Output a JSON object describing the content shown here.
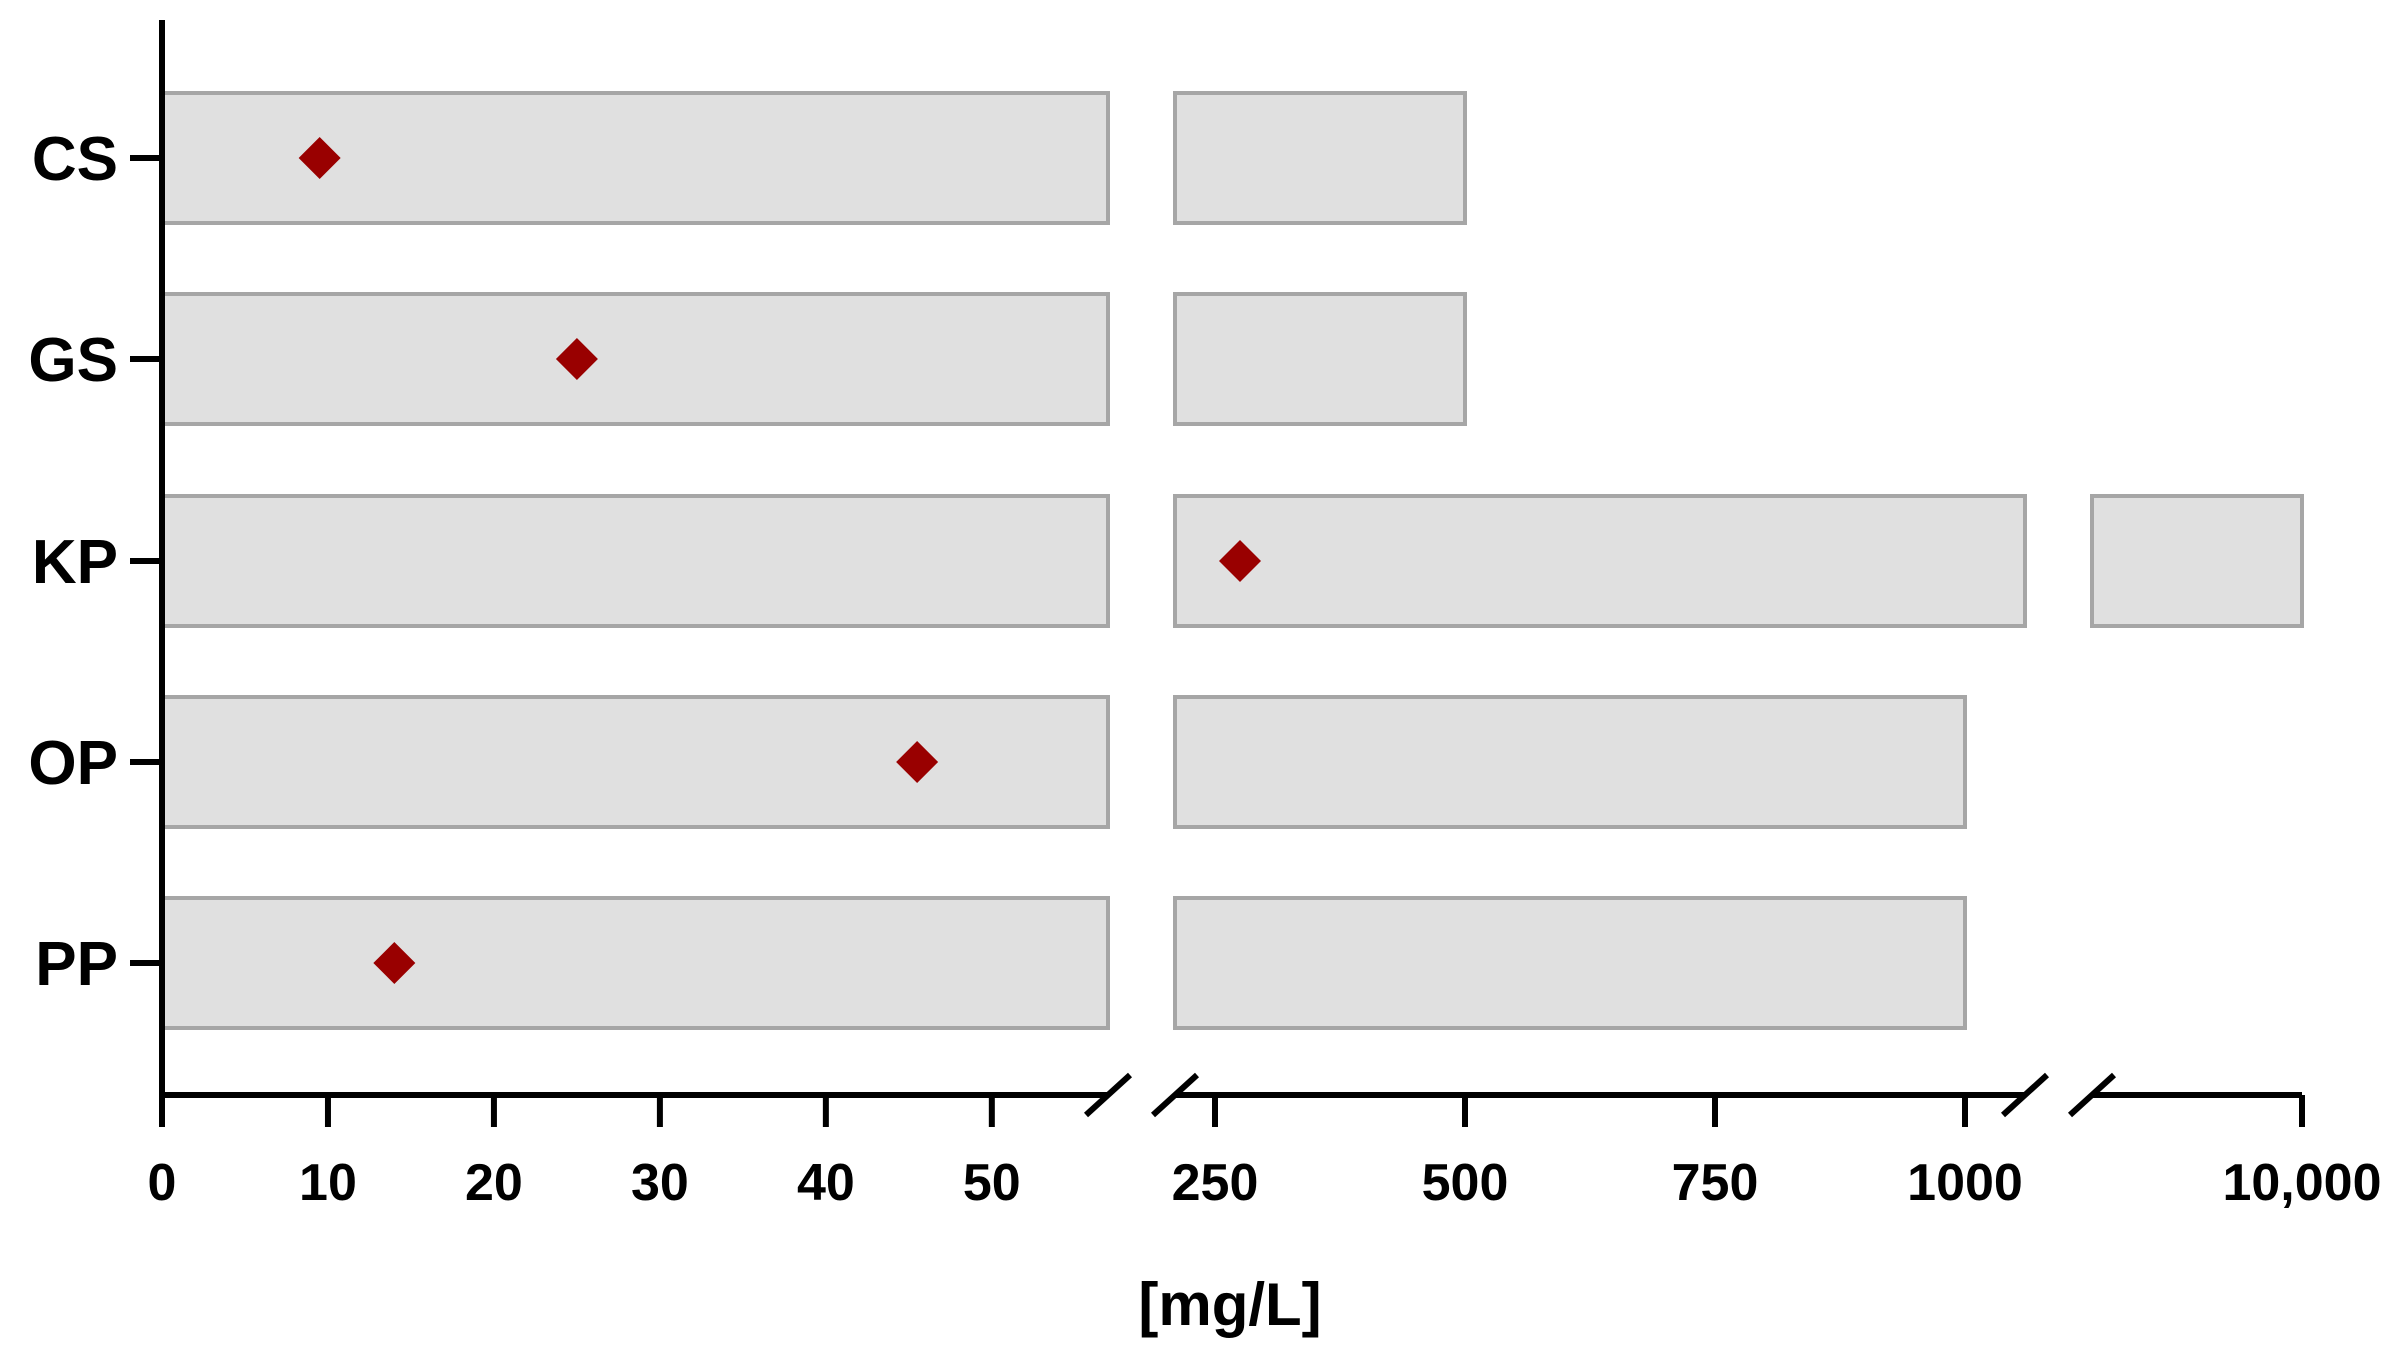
{
  "chart_data": {
    "type": "range-bar",
    "title": "",
    "xlabel": "[mg/L]",
    "ylabel": "",
    "x_axis_segments": [
      {
        "range": [
          0,
          57
        ],
        "ticks": [
          0,
          10,
          20,
          30,
          40,
          50
        ]
      },
      {
        "range": [
          210,
          1060
        ],
        "ticks": [
          250,
          500,
          750,
          1000
        ]
      },
      {
        "range": [
          9950,
          10000
        ],
        "ticks": [
          10000
        ]
      }
    ],
    "tick_labels": [
      "0",
      "10",
      "20",
      "30",
      "40",
      "50",
      "250",
      "500",
      "750",
      "1000",
      "10,000"
    ],
    "categories": [
      "CS",
      "GS",
      "KP",
      "OP",
      "PP"
    ],
    "range_bars": [
      {
        "category": "CS",
        "min": 0,
        "max": 500
      },
      {
        "category": "GS",
        "min": 0,
        "max": 500
      },
      {
        "category": "KP",
        "min": 0,
        "max": 10000
      },
      {
        "category": "OP",
        "min": 0,
        "max": 1000
      },
      {
        "category": "PP",
        "min": 0,
        "max": 1000
      }
    ],
    "points": [
      {
        "category": "CS",
        "value": 9.5
      },
      {
        "category": "GS",
        "value": 25
      },
      {
        "category": "KP",
        "value": 275
      },
      {
        "category": "OP",
        "value": 45.5
      },
      {
        "category": "PP",
        "value": 14
      }
    ],
    "colors": {
      "bar_fill": "#e0e0e0",
      "bar_stroke": "#a6a6a6",
      "point": "#990000",
      "axis": "#000000"
    },
    "point_marker": "diamond",
    "axis_breaks": true,
    "grid": false,
    "legend": "none"
  }
}
